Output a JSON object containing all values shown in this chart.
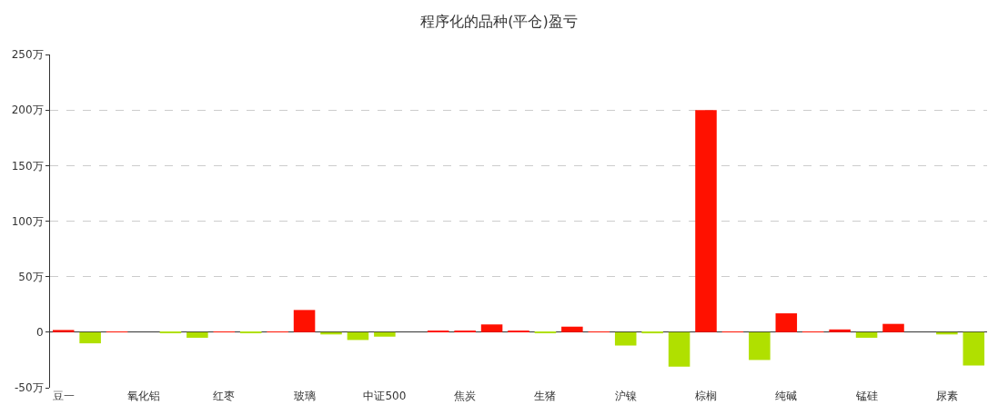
{
  "chart_data": {
    "type": "bar",
    "title": "程序化的品种(平仓)盈亏",
    "categories": [
      "豆一",
      null,
      null,
      "氧化铝",
      null,
      null,
      "红枣",
      null,
      null,
      "玻璃",
      null,
      null,
      "中证500",
      null,
      null,
      "焦炭",
      null,
      null,
      "生猪",
      null,
      null,
      "沪镍",
      null,
      null,
      "棕榈",
      null,
      null,
      "纯碱",
      null,
      null,
      "锰硅",
      null,
      null,
      "尿素",
      null
    ],
    "values": [
      2,
      -10,
      0.5,
      0,
      -0.5,
      -5,
      0.5,
      -0.5,
      0.5,
      20,
      -2,
      -7,
      -4,
      0,
      1,
      1,
      7,
      1,
      -0.5,
      5,
      0.5,
      -12,
      -1,
      -31,
      200,
      0.5,
      -25,
      17,
      0.5,
      2.5,
      -5,
      7.5,
      0,
      -2,
      -30
    ],
    "colors": [
      "#ff1100",
      "#b0e000",
      "#ff1100",
      "#ff1100",
      "#b0e000",
      "#b0e000",
      "#ff1100",
      "#b0e000",
      "#ff1100",
      "#ff1100",
      "#b0e000",
      "#b0e000",
      "#b0e000",
      "#ff1100",
      "#ff1100",
      "#ff1100",
      "#ff1100",
      "#ff1100",
      "#b0e000",
      "#ff1100",
      "#ff1100",
      "#b0e000",
      "#b0e000",
      "#b0e000",
      "#ff1100",
      "#ff1100",
      "#b0e000",
      "#ff1100",
      "#ff1100",
      "#ff1100",
      "#b0e000",
      "#ff1100",
      "#ff1100",
      "#b0e000",
      "#b0e000"
    ],
    "ylim": [
      -50,
      250
    ],
    "yticks": [
      {
        "value": -50,
        "label": "-50万"
      },
      {
        "value": 0,
        "label": "0"
      },
      {
        "value": 50,
        "label": "50万"
      },
      {
        "value": 100,
        "label": "100万"
      },
      {
        "value": 150,
        "label": "150万"
      },
      {
        "value": 200,
        "label": "200万"
      },
      {
        "value": 250,
        "label": "250万"
      }
    ],
    "grid": "y"
  }
}
